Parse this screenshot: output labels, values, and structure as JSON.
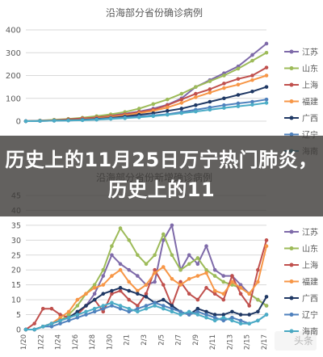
{
  "banner": {
    "title": "历史上的11月25日万宁热门肺炎，历史上的11"
  },
  "watermark": "头条",
  "chart_data": [
    {
      "type": "line",
      "title": "沿海部分省份确诊病例",
      "ylim": [
        0,
        400
      ],
      "yticks": [
        0,
        100,
        200,
        300,
        400
      ],
      "legend_position": "right",
      "x": [
        0,
        1,
        2,
        3,
        4,
        5,
        6,
        7,
        8,
        9,
        10,
        11,
        12,
        13,
        14,
        15,
        16,
        17
      ],
      "series": [
        {
          "name": "江苏",
          "color": "#7e6aa9",
          "values": [
            0,
            2,
            4,
            8,
            12,
            18,
            25,
            33,
            42,
            55,
            72,
            100,
            150,
            180,
            210,
            240,
            290,
            340
          ]
        },
        {
          "name": "山东",
          "color": "#9dbb59",
          "values": [
            0,
            3,
            6,
            10,
            15,
            22,
            30,
            40,
            55,
            75,
            95,
            120,
            150,
            175,
            200,
            230,
            265,
            300
          ]
        },
        {
          "name": "上海",
          "color": "#c0504d",
          "values": [
            0,
            2,
            4,
            8,
            12,
            16,
            22,
            30,
            40,
            50,
            70,
            95,
            120,
            140,
            165,
            185,
            200,
            235
          ]
        },
        {
          "name": "福建",
          "color": "#f79646",
          "values": [
            0,
            2,
            3,
            5,
            8,
            12,
            18,
            25,
            35,
            45,
            60,
            80,
            105,
            125,
            145,
            160,
            180,
            200
          ]
        },
        {
          "name": "广西",
          "color": "#1f3864",
          "values": [
            0,
            1,
            2,
            4,
            6,
            10,
            14,
            20,
            28,
            35,
            45,
            55,
            70,
            85,
            100,
            115,
            130,
            150
          ]
        },
        {
          "name": "辽宁",
          "color": "#4f81bd",
          "values": [
            0,
            1,
            2,
            3,
            5,
            8,
            12,
            16,
            20,
            25,
            30,
            40,
            50,
            60,
            70,
            78,
            85,
            95
          ]
        },
        {
          "name": "海南",
          "color": "#4bacc6",
          "values": [
            0,
            1,
            2,
            3,
            4,
            6,
            10,
            13,
            17,
            22,
            28,
            35,
            42,
            50,
            58,
            65,
            72,
            80
          ]
        }
      ]
    },
    {
      "type": "line",
      "title": "沿海部分省份新增确诊病例",
      "ylim": [
        0,
        45
      ],
      "yticks": [
        0,
        5,
        10,
        15,
        20,
        25,
        30,
        35,
        40,
        45
      ],
      "categories": [
        "1/20",
        "1/21",
        "1/22",
        "1/23",
        "1/24",
        "1/25",
        "1/26",
        "1/27",
        "1/28",
        "1/29",
        "1/30",
        "1/31",
        "2/1",
        "2/2",
        "2/3",
        "2/4",
        "2/5",
        "2/6",
        "2/7",
        "2/8",
        "2/9",
        "2/10",
        "2/11",
        "2/12",
        "2/13",
        "2/14",
        "2/15",
        "2/16",
        "2/17"
      ],
      "xticks": [
        "1/20",
        "1/22",
        "1/24",
        "1/26",
        "1/28",
        "1/30",
        "2/1",
        "2/3",
        "2/5",
        "2/7",
        "2/9",
        "2/11",
        "2/13",
        "2/15",
        "2/17"
      ],
      "legend_position": "right",
      "series": [
        {
          "name": "江苏",
          "color": "#7e6aa9",
          "values": [
            0,
            0,
            1,
            2,
            3,
            4,
            5,
            8,
            12,
            18,
            25,
            22,
            20,
            18,
            15,
            16,
            30,
            35,
            20,
            25,
            22,
            28,
            20,
            18,
            18,
            15,
            12,
            10,
            8
          ]
        },
        {
          "name": "山东",
          "color": "#9dbb59",
          "values": [
            0,
            0,
            1,
            2,
            3,
            5,
            8,
            12,
            15,
            20,
            28,
            34,
            30,
            25,
            22,
            25,
            32,
            25,
            20,
            22,
            24,
            20,
            18,
            16,
            15,
            14,
            12,
            10,
            8
          ]
        },
        {
          "name": "上海",
          "color": "#c0504d",
          "values": [
            0,
            2,
            7,
            7,
            5,
            4,
            5,
            8,
            10,
            6,
            12,
            13,
            10,
            8,
            12,
            20,
            15,
            8,
            16,
            12,
            10,
            14,
            12,
            10,
            18,
            12,
            8,
            20,
            30
          ]
        },
        {
          "name": "福建",
          "color": "#f79646",
          "values": [
            0,
            0,
            1,
            2,
            4,
            6,
            10,
            12,
            14,
            15,
            18,
            20,
            16,
            13,
            15,
            19,
            21,
            17,
            15,
            17,
            18,
            19,
            13,
            12,
            16,
            14,
            12,
            16,
            28
          ]
        },
        {
          "name": "广西",
          "color": "#1f3864",
          "values": [
            0,
            0,
            1,
            2,
            3,
            4,
            6,
            8,
            10,
            12,
            13,
            14,
            13,
            12,
            11,
            9,
            10,
            8,
            6,
            5,
            7,
            6,
            5,
            5,
            6,
            5,
            5,
            6,
            11
          ]
        },
        {
          "name": "辽宁",
          "color": "#4f81bd",
          "values": [
            0,
            0,
            1,
            1,
            2,
            3,
            4,
            5,
            6,
            7,
            8,
            7,
            6,
            7,
            8,
            9,
            8,
            7,
            6,
            5,
            6,
            5,
            4,
            3,
            4,
            3,
            2,
            3,
            5
          ]
        },
        {
          "name": "海南",
          "color": "#4bacc6",
          "values": [
            0,
            0,
            1,
            2,
            3,
            4,
            5,
            6,
            7,
            8,
            9,
            8,
            7,
            6,
            7,
            8,
            7,
            6,
            5,
            6,
            5,
            4,
            3,
            4,
            3,
            2,
            2,
            3,
            5
          ]
        }
      ]
    }
  ]
}
